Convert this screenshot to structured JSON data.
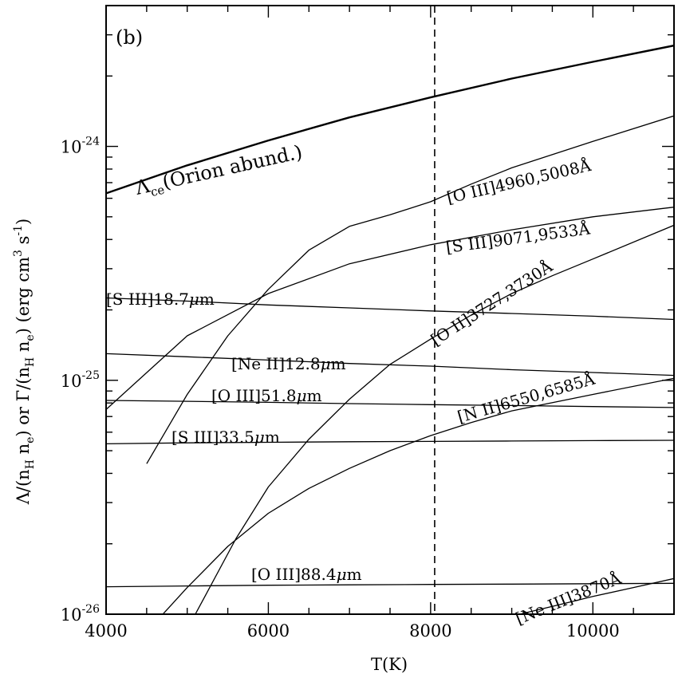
{
  "chart_data": {
    "type": "line",
    "panel_label": "(b)",
    "xlabel": "T(K)",
    "ylabel": "Λ/(n_H n_e) or Γ/(n_H n_e) (erg cm³ s⁻¹)",
    "ylabel_parts": {
      "lambda_sym": "Λ/(n",
      "sub_h1": "H",
      "mid1": " n",
      "sub_e1": "e",
      "mid2": ")  or Γ/(n",
      "sub_h2": "H",
      "mid3": " n",
      "sub_e2": "e",
      "mid4": ")  (erg cm",
      "sup3": "3",
      "mid5": " s",
      "supm1": "-1",
      "end": ")"
    },
    "xlim": [
      4000,
      11000
    ],
    "ylim": [
      1e-26,
      4e-24
    ],
    "yscale": "log",
    "x_ticks": [
      {
        "value": 4000,
        "label": "4000"
      },
      {
        "value": 6000,
        "label": "6000"
      },
      {
        "value": 8000,
        "label": "8000"
      },
      {
        "value": 10000,
        "label": "10000"
      }
    ],
    "y_ticks": [
      {
        "value": 1e-26,
        "base": "10",
        "exp": "-26"
      },
      {
        "value": 1e-25,
        "base": "10",
        "exp": "-25"
      },
      {
        "value": 1e-24,
        "base": "10",
        "exp": "-24"
      }
    ],
    "vline": {
      "x": 8050,
      "style": "dashed"
    },
    "series": [
      {
        "name": "Λce(Orion abund.)",
        "label_parts": {
          "main": "Λ",
          "sub": "ce",
          "rest": "(Orion  abund.)"
        },
        "bold": true,
        "x": [
          4000,
          5000,
          6000,
          7000,
          8000,
          9000,
          10000,
          11000
        ],
        "y": [
          6.3e-25,
          8.3e-25,
          1.06e-24,
          1.33e-24,
          1.62e-24,
          1.95e-24,
          2.3e-24,
          2.7e-24
        ]
      },
      {
        "name": "[O III]4960,5008Å",
        "label_parts": {
          "main": "[O III]4960,5008Å"
        },
        "x": [
          4500,
          5000,
          5500,
          6000,
          6500,
          7000,
          7500,
          8000,
          8500,
          9000,
          10000,
          11000
        ],
        "y": [
          4.4e-26,
          8.7e-26,
          1.55e-25,
          2.45e-25,
          3.6e-25,
          4.55e-25,
          5.1e-25,
          5.8e-25,
          6.9e-25,
          8.1e-25,
          1.05e-24,
          1.35e-24
        ]
      },
      {
        "name": "[S III]9071,9533Å",
        "label_parts": {
          "main": "[S III]9071,9533Å"
        },
        "x": [
          4000,
          5000,
          6000,
          7000,
          8000,
          9000,
          10000,
          11000
        ],
        "y": [
          7.5e-26,
          1.55e-25,
          2.35e-25,
          3.15e-25,
          3.8e-25,
          4.4e-25,
          5e-25,
          5.5e-25
        ]
      },
      {
        "name": "[O II]3727,3730Å",
        "label_parts": {
          "main": "[O II]3727,3730Å"
        },
        "x": [
          5100,
          5600,
          6000,
          6500,
          7000,
          7500,
          8000,
          8500,
          9000,
          9500,
          10000,
          11000
        ],
        "y": [
          1e-26,
          2.1e-26,
          3.5e-26,
          5.6e-26,
          8.3e-26,
          1.17e-25,
          1.5e-25,
          1.9e-25,
          2.35e-25,
          2.8e-25,
          3.3e-25,
          4.6e-25
        ]
      },
      {
        "name": "[S III]18.7μm",
        "label_parts": {
          "main": "[S III]18.7",
          "mu": "μ",
          "unit": "m"
        },
        "x": [
          4000,
          5000,
          6000,
          7000,
          8000,
          9000,
          10000,
          11000
        ],
        "y": [
          2.25e-25,
          2.18e-25,
          2.1e-25,
          2.04e-25,
          1.98e-25,
          1.93e-25,
          1.88e-25,
          1.82e-25
        ]
      },
      {
        "name": "[Ne II]12.8μm",
        "label_parts": {
          "main": "[Ne II]12.8",
          "mu": "μ",
          "unit": "m"
        },
        "x": [
          4000,
          5000,
          6000,
          7000,
          8000,
          9000,
          10000,
          11000
        ],
        "y": [
          1.3e-25,
          1.26e-25,
          1.22e-25,
          1.18e-25,
          1.15e-25,
          1.11e-25,
          1.08e-25,
          1.05e-25
        ]
      },
      {
        "name": "[O III]51.8μm",
        "label_parts": {
          "main": "[O III]51.8",
          "mu": "μ",
          "unit": "m"
        },
        "x": [
          4000,
          5000,
          6000,
          7000,
          8000,
          9000,
          10000,
          11000
        ],
        "y": [
          8.2e-26,
          8.13e-26,
          8.05e-26,
          7.95e-26,
          7.87e-26,
          7.8e-26,
          7.72e-26,
          7.65e-26
        ]
      },
      {
        "name": "[N II]6550,6585Å",
        "label_parts": {
          "main": "[N II]6550,6585Å"
        },
        "x": [
          4700,
          5000,
          5500,
          6000,
          6500,
          7000,
          7500,
          8000,
          8500,
          9000,
          10000,
          11000
        ],
        "y": [
          1e-26,
          1.3e-26,
          1.95e-26,
          2.7e-26,
          3.45e-26,
          4.2e-26,
          5e-26,
          5.8e-26,
          6.6e-26,
          7.4e-26,
          8.7e-26,
          1.02e-25
        ]
      },
      {
        "name": "[S III]33.5μm",
        "label_parts": {
          "main": "[S III]33.5",
          "mu": "μ",
          "unit": "m"
        },
        "x": [
          4000,
          5000,
          6000,
          7000,
          8000,
          9000,
          10000,
          11000
        ],
        "y": [
          5.35e-26,
          5.4e-26,
          5.43e-26,
          5.46e-26,
          5.48e-26,
          5.5e-26,
          5.52e-26,
          5.54e-26
        ]
      },
      {
        "name": "[O III]88.4μm",
        "label_parts": {
          "main": "[O III]88.4",
          "mu": "μ",
          "unit": "m"
        },
        "x": [
          4000,
          5000,
          6000,
          7000,
          8000,
          9000,
          10000,
          11000
        ],
        "y": [
          1.31e-26,
          1.32e-26,
          1.33e-26,
          1.335e-26,
          1.34e-26,
          1.345e-26,
          1.35e-26,
          1.355e-26
        ]
      },
      {
        "name": "[Ne III]3870Å",
        "label_parts": {
          "main": "[Ne III]3870Å"
        },
        "x": [
          9100,
          9500,
          10000,
          10500,
          11000
        ],
        "y": [
          1e-26,
          1.08e-26,
          1.19e-26,
          1.3e-26,
          1.42e-26
        ]
      }
    ]
  }
}
